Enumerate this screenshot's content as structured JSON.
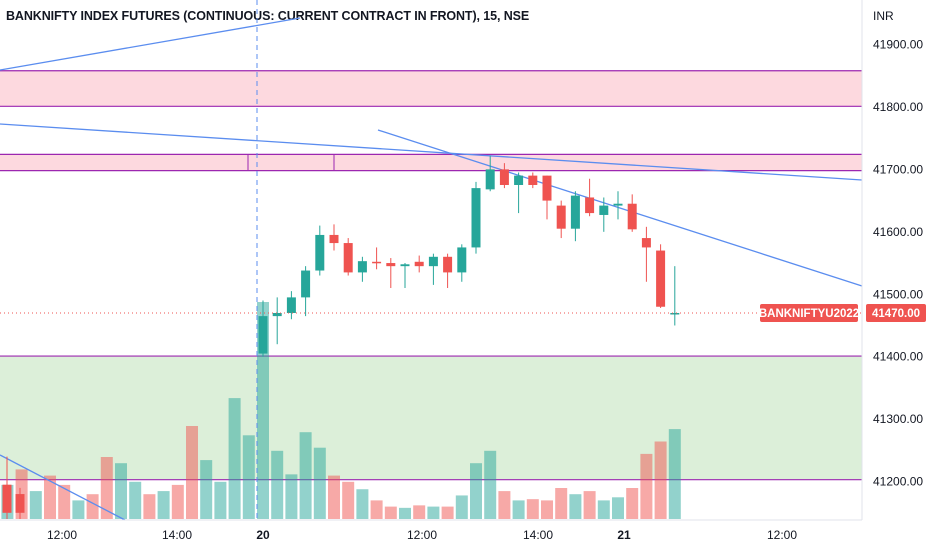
{
  "chart_data": {
    "type": "candlestick",
    "title": "BANKNIFTY INDEX FUTURES (CONTINUOUS: CURRENT CONTRACT IN FRONT), 15, NSE",
    "currency": "INR",
    "symbol_tag": "BANKNIFTYU2022",
    "last_price_label": "41470.00",
    "last_price": 41470,
    "ylim": [
      41125,
      41985
    ],
    "y_ticks": [
      41900,
      41800,
      41700,
      41600,
      41500,
      41400,
      41300,
      41200
    ],
    "y_tick_labels": [
      "41900.00",
      "41800.00",
      "41700.00",
      "41600.00",
      "41500.00",
      "41400.00",
      "41300.00",
      "41200.00"
    ],
    "x_tick_labels": [
      "12:00",
      "14:00",
      "20",
      "12:00",
      "14:00",
      "21",
      "12:00"
    ],
    "colors": {
      "up": "#26a69a",
      "down": "#ef5350",
      "trendline": "#5b8def",
      "zone_border": "#9c27b0",
      "resistance_zone": "#fdd9df",
      "support_zone": "#dcefd9"
    },
    "zones": [
      {
        "kind": "resistance",
        "top": 41858,
        "bottom": 41801
      },
      {
        "kind": "resistance",
        "top": 41724,
        "bottom": 41698
      },
      {
        "kind": "support",
        "top": 41401,
        "bottom": 41203
      }
    ],
    "candles": [
      {
        "open": 41405,
        "high": 41490,
        "low": 41400,
        "close": 41465,
        "volume": 350
      },
      {
        "open": 41465,
        "high": 41495,
        "low": 41420,
        "close": 41470,
        "volume": 110
      },
      {
        "open": 41470,
        "high": 41505,
        "low": 41460,
        "close": 41495,
        "volume": 72
      },
      {
        "open": 41495,
        "high": 41545,
        "low": 41465,
        "close": 41538,
        "volume": 140
      },
      {
        "open": 41538,
        "high": 41610,
        "low": 41530,
        "close": 41595,
        "volume": 115
      },
      {
        "open": 41595,
        "high": 41612,
        "low": 41570,
        "close": 41582,
        "volume": 70
      },
      {
        "open": 41582,
        "high": 41590,
        "low": 41530,
        "close": 41535,
        "volume": 60
      },
      {
        "open": 41535,
        "high": 41560,
        "low": 41520,
        "close": 41553,
        "volume": 48
      },
      {
        "open": 41552,
        "high": 41575,
        "low": 41540,
        "close": 41550,
        "volume": 30
      },
      {
        "open": 41550,
        "high": 41558,
        "low": 41510,
        "close": 41545,
        "volume": 20
      },
      {
        "open": 41545,
        "high": 41550,
        "low": 41510,
        "close": 41548,
        "volume": 18
      },
      {
        "open": 41552,
        "high": 41562,
        "low": 41535,
        "close": 41545,
        "volume": 22
      },
      {
        "open": 41545,
        "high": 41565,
        "low": 41515,
        "close": 41560,
        "volume": 20
      },
      {
        "open": 41560,
        "high": 41565,
        "low": 41510,
        "close": 41535,
        "volume": 20
      },
      {
        "open": 41535,
        "high": 41580,
        "low": 41520,
        "close": 41575,
        "volume": 38
      },
      {
        "open": 41575,
        "high": 41680,
        "low": 41565,
        "close": 41670,
        "volume": 90
      },
      {
        "open": 41668,
        "high": 41722,
        "low": 41665,
        "close": 41700,
        "volume": 110
      },
      {
        "open": 41700,
        "high": 41710,
        "low": 41670,
        "close": 41675,
        "volume": 45
      },
      {
        "open": 41675,
        "high": 41695,
        "low": 41630,
        "close": 41690,
        "volume": 30
      },
      {
        "open": 41690,
        "high": 41695,
        "low": 41670,
        "close": 41675,
        "volume": 32
      },
      {
        "open": 41690,
        "high": 41690,
        "low": 41620,
        "close": 41650,
        "volume": 30
      },
      {
        "open": 41642,
        "high": 41650,
        "low": 41590,
        "close": 41605,
        "volume": 50
      },
      {
        "open": 41605,
        "high": 41665,
        "low": 41585,
        "close": 41658,
        "volume": 40
      },
      {
        "open": 41655,
        "high": 41685,
        "low": 41625,
        "close": 41630,
        "volume": 45
      },
      {
        "open": 41627,
        "high": 41655,
        "low": 41600,
        "close": 41642,
        "volume": 30
      },
      {
        "open": 41642,
        "high": 41665,
        "low": 41620,
        "close": 41645,
        "volume": 35
      },
      {
        "open": 41645,
        "high": 41660,
        "low": 41600,
        "close": 41604,
        "volume": 50
      },
      {
        "open": 41590,
        "high": 41608,
        "low": 41520,
        "close": 41575,
        "volume": 105
      },
      {
        "open": 41570,
        "high": 41580,
        "low": 41478,
        "close": 41480,
        "volume": 125
      },
      {
        "open": 41470,
        "high": 41545,
        "low": 41450,
        "close": 41470,
        "volume": 145
      }
    ],
    "volume_before": [
      {
        "up": false,
        "volume": 55
      },
      {
        "up": false,
        "volume": 95
      },
      {
        "up": true,
        "volume": 55
      },
      {
        "up": false,
        "volume": 80
      },
      {
        "up": true,
        "volume": 45
      },
      {
        "up": false,
        "volume": 70
      },
      {
        "up": false,
        "volume": 55
      },
      {
        "up": true,
        "volume": 30
      },
      {
        "up": false,
        "volume": 40
      },
      {
        "up": false,
        "volume": 100
      },
      {
        "up": true,
        "volume": 90
      },
      {
        "up": true,
        "volume": 60
      },
      {
        "up": false,
        "volume": 40
      },
      {
        "up": true,
        "volume": 45
      },
      {
        "up": false,
        "volume": 55
      },
      {
        "up": false,
        "volume": 150
      },
      {
        "up": true,
        "volume": 95
      },
      {
        "up": true,
        "volume": 60
      },
      {
        "up": true,
        "volume": 195
      },
      {
        "up": true,
        "volume": 135
      }
    ]
  }
}
